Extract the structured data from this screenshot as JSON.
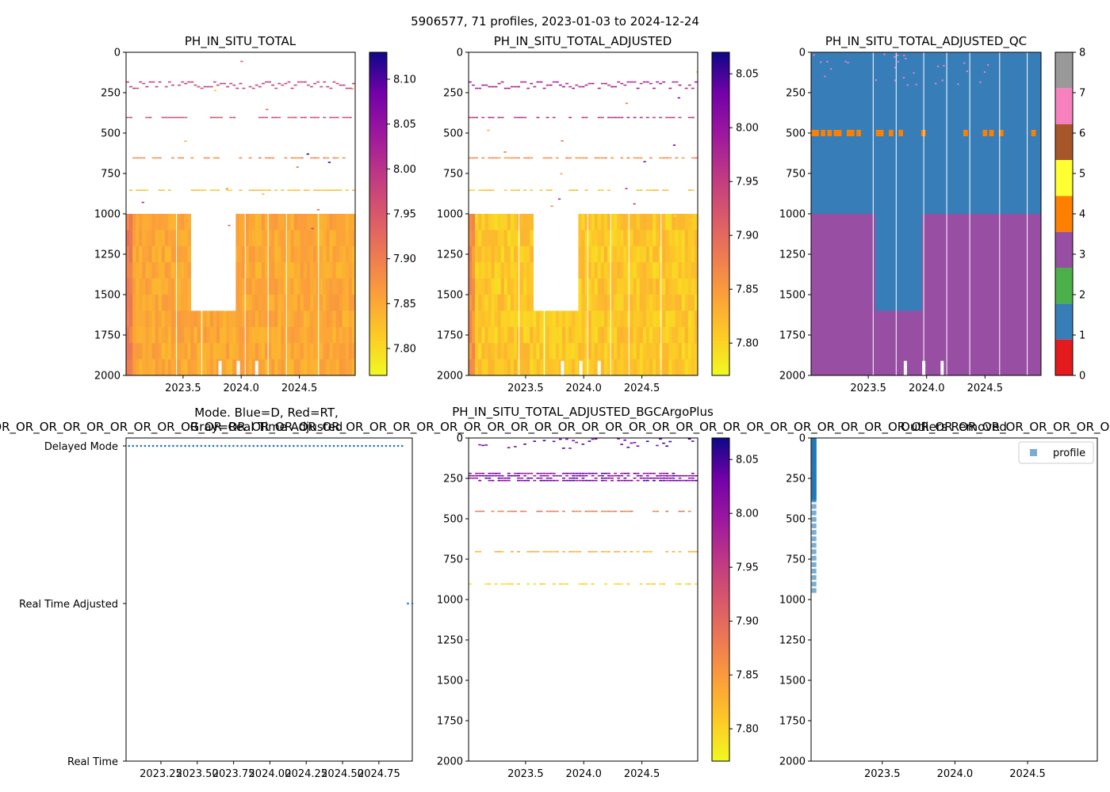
{
  "suptitle": "5906577, 71 profiles, 2023-01-03 to 2024-12-24",
  "panel_titles": {
    "ph_total": "PH_IN_SITU_TOTAL",
    "ph_adjusted": "PH_IN_SITU_TOTAL_ADJUSTED",
    "ph_adjusted_qc": "PH_IN_SITU_TOTAL_ADJUSTED_QC",
    "mode_line1": "Mode. Blue=D, Red=RT,",
    "mode_line2": "Gray=Real Time Adjusted",
    "bgc_plus": "PH_IN_SITU_TOTAL_ADJUSTED_BGCArgoPlus",
    "outliers": "Outliers Removed"
  },
  "overlap_label": "OR_OR_OR_OR_OR_OR_OR_OR_OR_OR_OR_OR_OR_OR_OR_OR_OR_OR_OR_OR_OR_OR_OR_OR_OR_OR_OR_OR_OR_OR_OR_OR_OR_OR_OR_OR_OR_OR_OR_OR_OR_OR_OR_OR_OR_OR_OR_OR_OR_OR_OR_OR_OR_OR_OR_OR_OR_OR_OR_OR_OR_OR_OR_OR_OR_OR_OR_OR",
  "legend": {
    "profile": "profile"
  },
  "colors": {
    "colormap": "plasma_r",
    "qc_1": "#377eb8",
    "qc_3": "#984ea3",
    "qc_4": "#ff7f00",
    "mode_delayed": "#1f77b4",
    "outlier_marker": "#1f77b4"
  },
  "chart_data": [
    {
      "id": "ph_total",
      "type": "heatmap",
      "title": "PH_IN_SITU_TOTAL",
      "xlim": [
        2023.01,
        2024.98
      ],
      "ylim": [
        2000,
        0
      ],
      "xticks": [
        "2023.5",
        "2024.0",
        "2024.5"
      ],
      "yticks": [
        "0",
        "250",
        "500",
        "750",
        "1000",
        "1250",
        "1500",
        "1750",
        "2000"
      ],
      "colorbar": {
        "range": [
          7.77,
          8.13
        ],
        "ticks": [
          "7.80",
          "7.85",
          "7.90",
          "7.95",
          "8.00",
          "8.05",
          "8.10"
        ]
      },
      "deep_block_value": 7.85,
      "gap_x": [
        2023.56,
        2023.96
      ],
      "gap_depth": [
        1000,
        1600
      ],
      "sparse_layers": [
        {
          "depth": 180,
          "value": 7.98
        },
        {
          "depth": 400,
          "value": 7.96
        },
        {
          "depth": 650,
          "value": 7.88
        },
        {
          "depth": 850,
          "value": 7.82
        }
      ]
    },
    {
      "id": "ph_adjusted",
      "type": "heatmap",
      "title": "PH_IN_SITU_TOTAL_ADJUSTED",
      "xlim": [
        2023.01,
        2024.98
      ],
      "ylim": [
        2000,
        0
      ],
      "xticks": [
        "2023.5",
        "2024.0",
        "2024.5"
      ],
      "yticks": [
        "0",
        "250",
        "500",
        "750",
        "1000",
        "1250",
        "1500",
        "1750",
        "2000"
      ],
      "colorbar": {
        "range": [
          7.77,
          8.07
        ],
        "ticks": [
          "7.80",
          "7.85",
          "7.90",
          "7.95",
          "8.00",
          "8.05"
        ]
      },
      "deep_block_value": 7.81,
      "gap_x": [
        2023.56,
        2023.96
      ],
      "gap_depth": [
        1000,
        1600
      ],
      "sparse_layers": [
        {
          "depth": 180,
          "value": 7.98
        },
        {
          "depth": 400,
          "value": 7.96
        },
        {
          "depth": 650,
          "value": 7.86
        },
        {
          "depth": 850,
          "value": 7.81
        }
      ]
    },
    {
      "id": "ph_adjusted_qc",
      "type": "heatmap",
      "title": "PH_IN_SITU_TOTAL_ADJUSTED_QC",
      "xlim": [
        2023.01,
        2024.98
      ],
      "ylim": [
        2000,
        0
      ],
      "xticks": [
        "2023.5",
        "2024.0",
        "2024.5"
      ],
      "yticks": [
        "0",
        "250",
        "500",
        "750",
        "1000",
        "1250",
        "1500",
        "1750",
        "2000"
      ],
      "colorbar": {
        "type": "categorical",
        "ticks": [
          "0",
          "1",
          "2",
          "3",
          "4",
          "5",
          "6",
          "7",
          "8"
        ],
        "colors": [
          "#e41a1c",
          "#377eb8",
          "#4daf4a",
          "#984ea3",
          "#ff7f00",
          "#ffff33",
          "#a65628",
          "#f781bf",
          "#999999"
        ]
      },
      "upper_flag": 1,
      "deep_flag": 3,
      "qc1_deep_x": [
        2023.56,
        2023.96
      ],
      "qc1_deep_depth": [
        1000,
        1600
      ],
      "flag4_depth": 500
    },
    {
      "id": "mode",
      "type": "scatter",
      "title": "Mode. Blue=D, Red=RT, Gray=Real Time Adjusted",
      "xlim": [
        2023.01,
        2024.98
      ],
      "xticks": [
        "2023.25",
        "2023.50",
        "2023.75",
        "2024.00",
        "2024.25",
        "2024.50",
        "2024.75"
      ],
      "yticks": [
        "Delayed Mode",
        "Real Time Adjusted",
        "Real Time"
      ],
      "series": [
        {
          "name": "Delayed Mode",
          "x_range": [
            2023.03,
            2024.91
          ],
          "count": 69
        },
        {
          "name": "Real Time Adjusted",
          "x_range": [
            2024.95,
            2024.98
          ],
          "count": 2
        }
      ]
    },
    {
      "id": "bgc_plus",
      "type": "heatmap",
      "title": "PH_IN_SITU_TOTAL_ADJUSTED_BGCArgoPlus",
      "xlim": [
        2023.01,
        2024.98
      ],
      "ylim": [
        2000,
        0
      ],
      "xticks": [
        "2023.5",
        "2024.0",
        "2024.5"
      ],
      "yticks": [
        "0",
        "250",
        "500",
        "750",
        "1000",
        "1250",
        "1500",
        "1750",
        "2000"
      ],
      "colorbar": {
        "range": [
          7.77,
          8.07
        ],
        "ticks": [
          "7.80",
          "7.85",
          "7.90",
          "7.95",
          "8.00",
          "8.05"
        ]
      },
      "sparse_layers": [
        {
          "depth": 230,
          "value": 7.97
        },
        {
          "depth": 450,
          "value": 7.88
        },
        {
          "depth": 700,
          "value": 7.83
        },
        {
          "depth": 900,
          "value": 7.8
        }
      ]
    },
    {
      "id": "outliers",
      "type": "scatter",
      "title": "Outliers Removed",
      "xlim": [
        2023.01,
        2024.98
      ],
      "ylim": [
        2000,
        0
      ],
      "xticks": [
        "2023.5",
        "2024.0",
        "2024.5"
      ],
      "yticks": [
        "0",
        "250",
        "500",
        "750",
        "1000",
        "1250",
        "1500",
        "1750",
        "2000"
      ],
      "series": [
        {
          "name": "profile",
          "x": 2023.03,
          "depth_range": [
            0,
            960
          ]
        }
      ],
      "legend": "top-right"
    }
  ]
}
